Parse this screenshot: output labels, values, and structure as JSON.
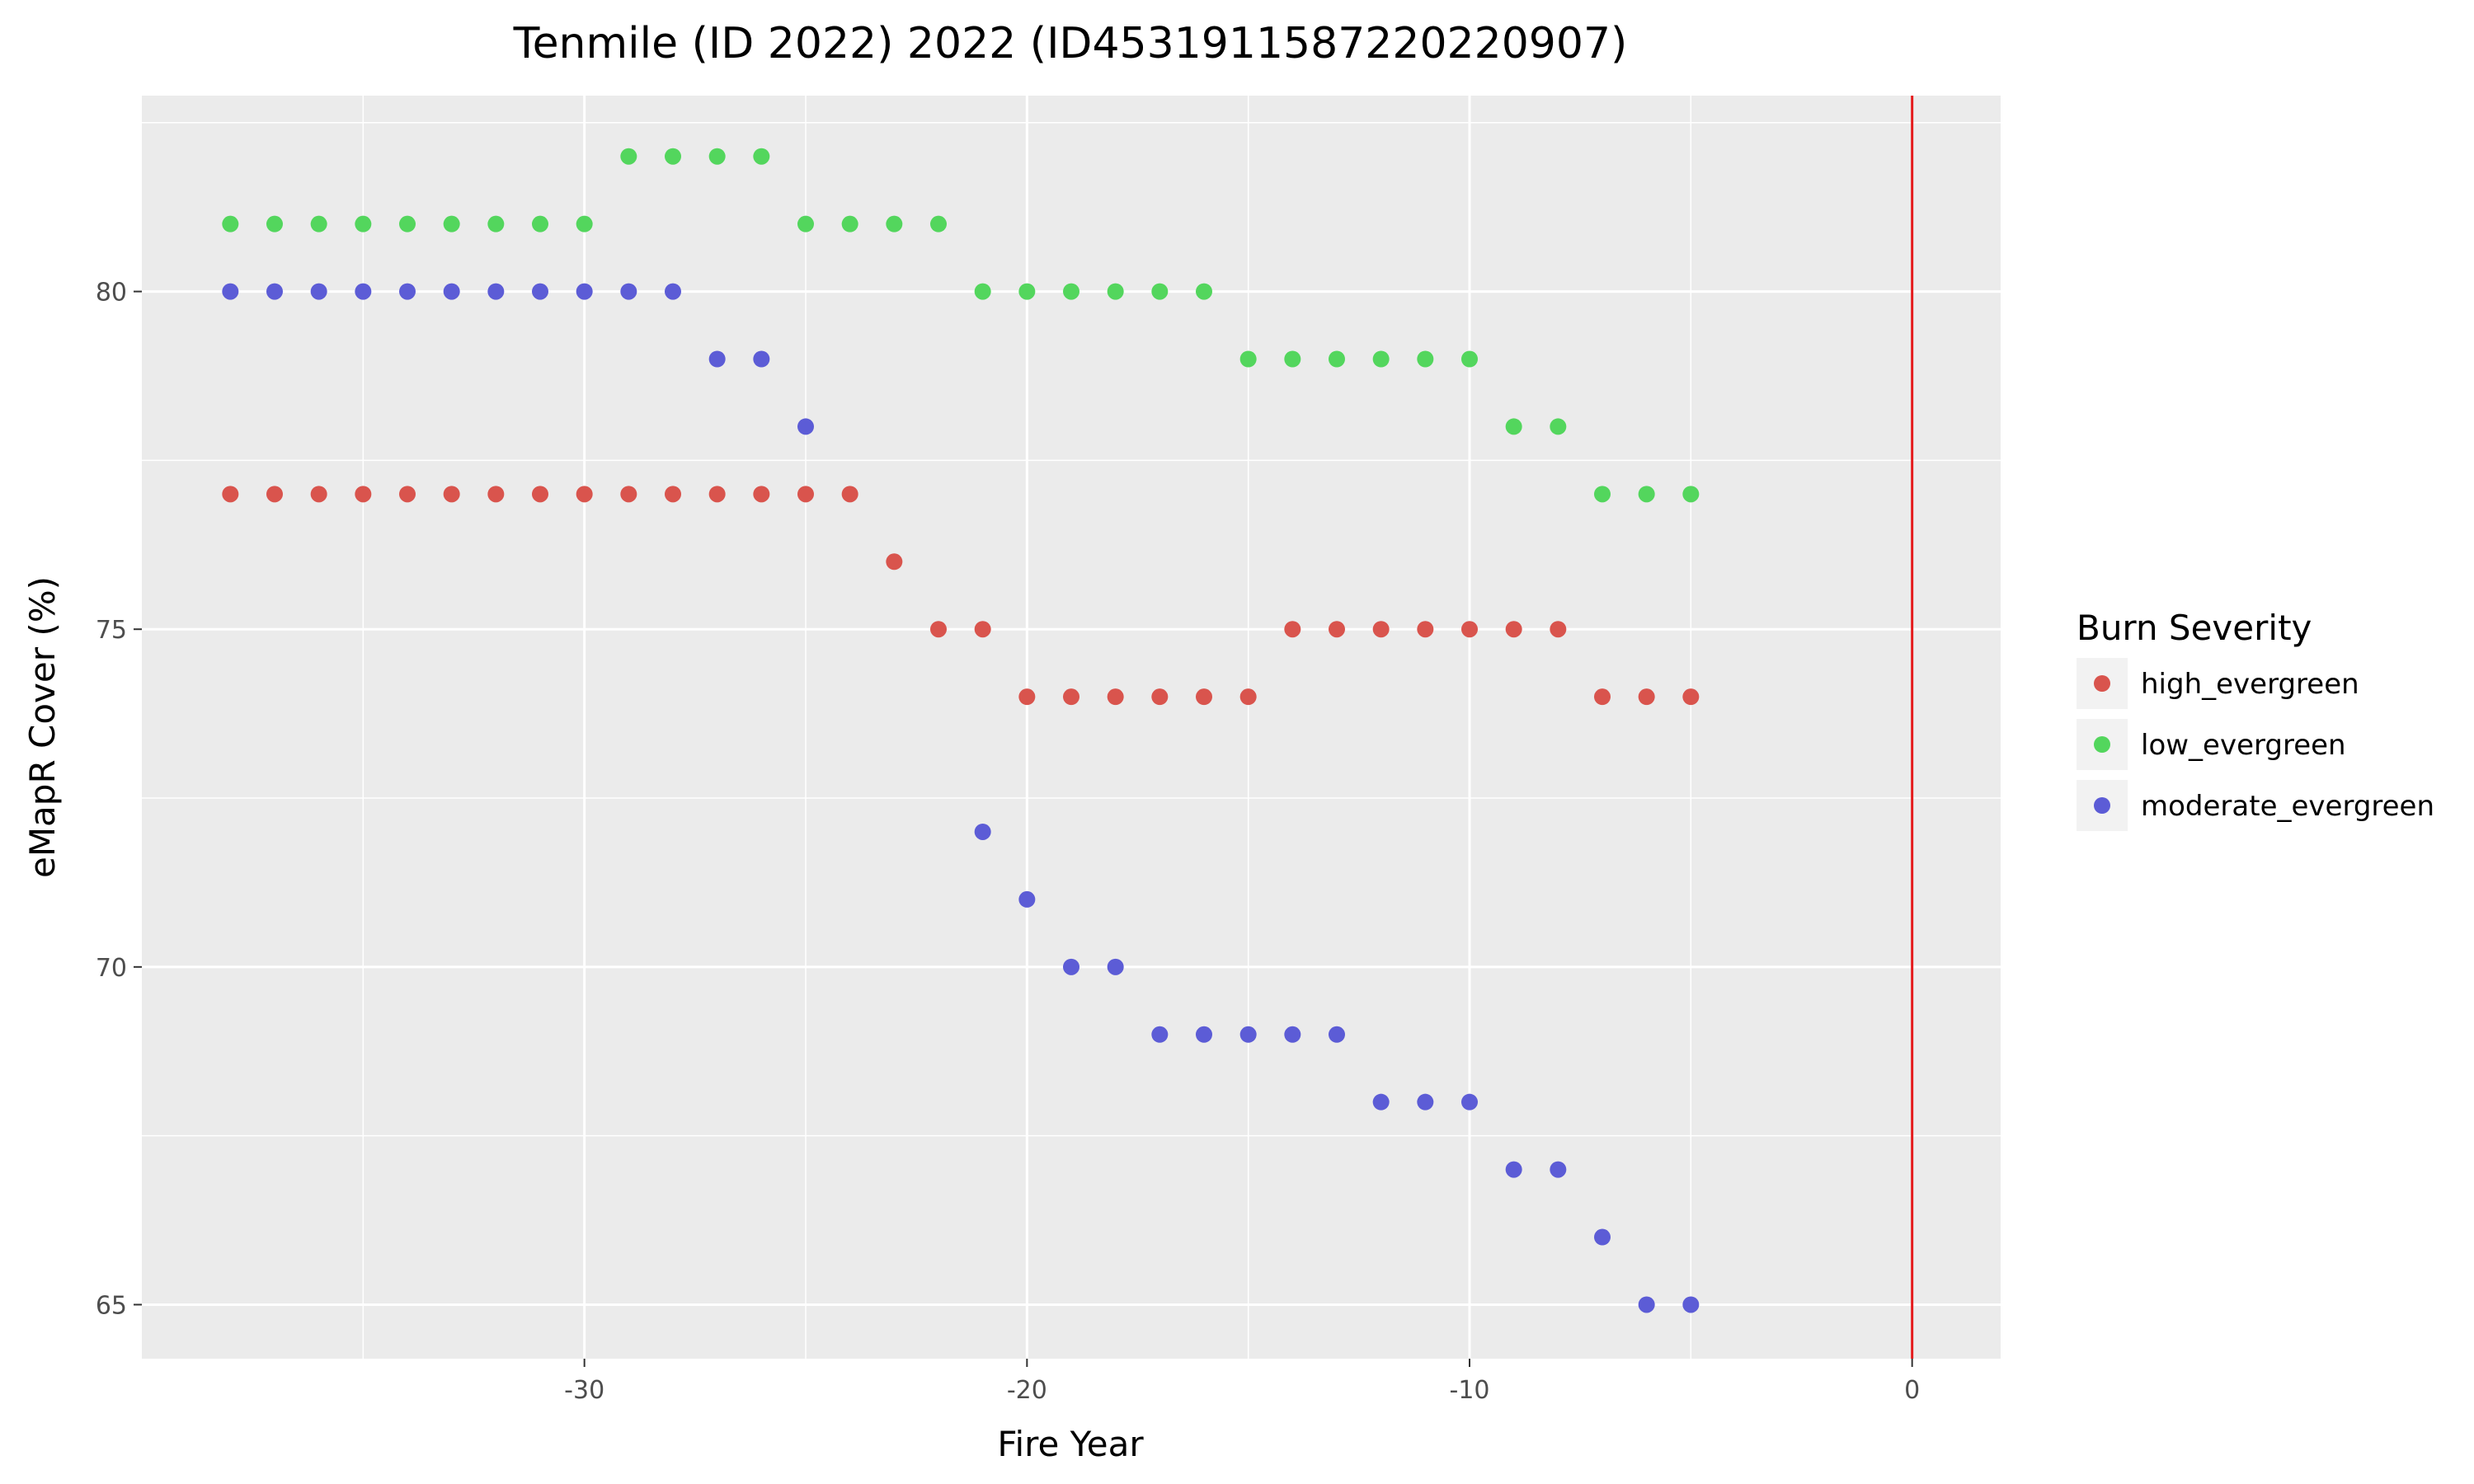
{
  "chart_data": {
    "type": "scatter",
    "title": "Tenmile (ID 2022) 2022 (ID4531911587220220907)",
    "xlabel": "Fire Year",
    "ylabel": "eMapR Cover (%)",
    "xlim": [
      -40,
      2
    ],
    "ylim": [
      64.2,
      82.9
    ],
    "x_ticks": [
      -30,
      -20,
      -10,
      0
    ],
    "y_ticks": [
      65,
      70,
      75,
      80
    ],
    "grid": true,
    "reference_line": {
      "axis": "x",
      "value": 0,
      "color": "#e41a1c"
    },
    "legend": {
      "title": "Burn Severity",
      "placement": "right"
    },
    "series": [
      {
        "name": "high_evergreen",
        "color": "#d9544d",
        "x": [
          -38,
          -37,
          -36,
          -35,
          -34,
          -33,
          -32,
          -31,
          -30,
          -29,
          -28,
          -27,
          -26,
          -25,
          -24,
          -23,
          -22,
          -21,
          -20,
          -19,
          -18,
          -17,
          -16,
          -15,
          -14,
          -13,
          -12,
          -11,
          -10,
          -9,
          -8,
          -7,
          -6,
          -5
        ],
        "y": [
          77,
          77,
          77,
          77,
          77,
          77,
          77,
          77,
          77,
          77,
          77,
          77,
          77,
          77,
          77,
          76,
          75,
          75,
          74,
          74,
          74,
          74,
          74,
          74,
          75,
          75,
          75,
          75,
          75,
          75,
          75,
          74,
          74,
          74
        ]
      },
      {
        "name": "low_evergreen",
        "color": "#53d65d",
        "x": [
          -38,
          -37,
          -36,
          -35,
          -34,
          -33,
          -32,
          -31,
          -30,
          -29,
          -28,
          -27,
          -26,
          -25,
          -24,
          -23,
          -22,
          -21,
          -20,
          -19,
          -18,
          -17,
          -16,
          -15,
          -14,
          -13,
          -12,
          -11,
          -10,
          -9,
          -8,
          -7,
          -6,
          -5
        ],
        "y": [
          81,
          81,
          81,
          81,
          81,
          81,
          81,
          81,
          81,
          82,
          82,
          82,
          82,
          81,
          81,
          81,
          81,
          80,
          80,
          80,
          80,
          80,
          80,
          79,
          79,
          79,
          79,
          79,
          79,
          78,
          78,
          77,
          77,
          77
        ]
      },
      {
        "name": "moderate_evergreen",
        "color": "#5c5cd6",
        "x": [
          -38,
          -37,
          -36,
          -35,
          -34,
          -33,
          -32,
          -31,
          -30,
          -29,
          -28,
          -27,
          -26,
          -25,
          -21,
          -20,
          -19,
          -18,
          -17,
          -16,
          -15,
          -14,
          -13,
          -12,
          -11,
          -10,
          -9,
          -8,
          -7,
          -6,
          -5
        ],
        "y": [
          80,
          80,
          80,
          80,
          80,
          80,
          80,
          80,
          80,
          80,
          80,
          79,
          79,
          78,
          72,
          71,
          70,
          70,
          69,
          69,
          69,
          69,
          69,
          68,
          68,
          68,
          67,
          67,
          66,
          65,
          65
        ]
      }
    ]
  }
}
